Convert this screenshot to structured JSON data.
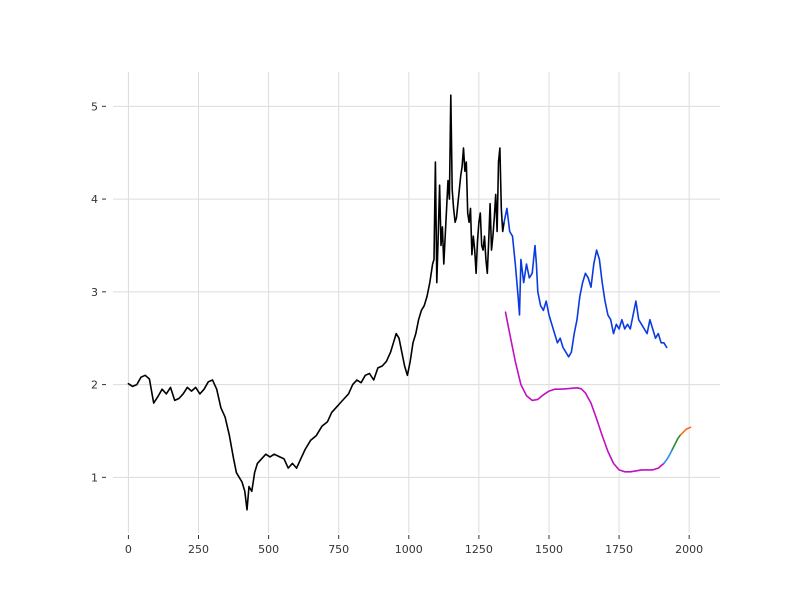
{
  "chart_data": {
    "type": "line",
    "title": "",
    "xlabel": "",
    "ylabel": "",
    "xlim": [
      -55,
      2110
    ],
    "ylim": [
      0.4,
      5.37
    ],
    "grid": true,
    "legend": "none",
    "x_ticks": [
      {
        "value": 0,
        "label": "0"
      },
      {
        "value": 250,
        "label": "250"
      },
      {
        "value": 500,
        "label": "500"
      },
      {
        "value": 750,
        "label": "750"
      },
      {
        "value": 1000,
        "label": "1000"
      },
      {
        "value": 1250,
        "label": "1250"
      },
      {
        "value": 1500,
        "label": "1500"
      },
      {
        "value": 1750,
        "label": "1750"
      },
      {
        "value": 2000,
        "label": "2000"
      }
    ],
    "y_ticks": [
      {
        "value": 1,
        "label": "1"
      },
      {
        "value": 2,
        "label": "2"
      },
      {
        "value": 3,
        "label": "3"
      },
      {
        "value": 4,
        "label": "4"
      },
      {
        "value": 5,
        "label": "5"
      }
    ],
    "series": [
      {
        "color": "#000000",
        "points": [
          [
            0,
            2.01
          ],
          [
            15,
            1.98
          ],
          [
            30,
            2.0
          ],
          [
            45,
            2.08
          ],
          [
            60,
            2.1
          ],
          [
            75,
            2.06
          ],
          [
            90,
            1.8
          ],
          [
            105,
            1.87
          ],
          [
            120,
            1.95
          ],
          [
            135,
            1.9
          ],
          [
            150,
            1.97
          ],
          [
            165,
            1.83
          ],
          [
            180,
            1.85
          ],
          [
            195,
            1.9
          ],
          [
            210,
            1.97
          ],
          [
            225,
            1.93
          ],
          [
            240,
            1.97
          ],
          [
            255,
            1.9
          ],
          [
            270,
            1.95
          ],
          [
            285,
            2.03
          ],
          [
            300,
            2.05
          ],
          [
            315,
            1.95
          ],
          [
            330,
            1.75
          ],
          [
            345,
            1.65
          ],
          [
            360,
            1.45
          ],
          [
            375,
            1.2
          ],
          [
            385,
            1.05
          ],
          [
            395,
            1.0
          ],
          [
            405,
            0.95
          ],
          [
            415,
            0.85
          ],
          [
            423,
            0.65
          ],
          [
            430,
            0.9
          ],
          [
            440,
            0.85
          ],
          [
            450,
            1.05
          ],
          [
            460,
            1.15
          ],
          [
            475,
            1.2
          ],
          [
            490,
            1.25
          ],
          [
            505,
            1.22
          ],
          [
            520,
            1.25
          ],
          [
            540,
            1.22
          ],
          [
            555,
            1.2
          ],
          [
            570,
            1.1
          ],
          [
            585,
            1.15
          ],
          [
            600,
            1.1
          ],
          [
            615,
            1.2
          ],
          [
            630,
            1.3
          ],
          [
            650,
            1.4
          ],
          [
            670,
            1.45
          ],
          [
            690,
            1.55
          ],
          [
            710,
            1.6
          ],
          [
            725,
            1.7
          ],
          [
            740,
            1.75
          ],
          [
            755,
            1.8
          ],
          [
            770,
            1.85
          ],
          [
            785,
            1.9
          ],
          [
            800,
            2.0
          ],
          [
            815,
            2.05
          ],
          [
            830,
            2.02
          ],
          [
            845,
            2.1
          ],
          [
            860,
            2.12
          ],
          [
            875,
            2.05
          ],
          [
            890,
            2.18
          ],
          [
            905,
            2.2
          ],
          [
            920,
            2.25
          ],
          [
            935,
            2.35
          ],
          [
            945,
            2.45
          ],
          [
            955,
            2.55
          ],
          [
            965,
            2.5
          ],
          [
            975,
            2.35
          ],
          [
            985,
            2.2
          ],
          [
            995,
            2.1
          ],
          [
            1005,
            2.25
          ],
          [
            1015,
            2.45
          ],
          [
            1025,
            2.55
          ],
          [
            1035,
            2.7
          ],
          [
            1045,
            2.8
          ],
          [
            1055,
            2.85
          ],
          [
            1065,
            2.95
          ],
          [
            1075,
            3.1
          ],
          [
            1085,
            3.3
          ],
          [
            1090,
            3.35
          ],
          [
            1095,
            4.4
          ],
          [
            1100,
            3.1
          ],
          [
            1105,
            3.6
          ],
          [
            1110,
            4.15
          ],
          [
            1115,
            3.5
          ],
          [
            1120,
            3.7
          ],
          [
            1125,
            3.3
          ],
          [
            1130,
            3.6
          ],
          [
            1135,
            3.9
          ],
          [
            1140,
            4.2
          ],
          [
            1145,
            4.0
          ],
          [
            1150,
            5.12
          ],
          [
            1155,
            4.1
          ],
          [
            1160,
            3.9
          ],
          [
            1165,
            3.75
          ],
          [
            1170,
            3.8
          ],
          [
            1175,
            3.95
          ],
          [
            1180,
            4.1
          ],
          [
            1185,
            4.25
          ],
          [
            1190,
            4.35
          ],
          [
            1195,
            4.55
          ],
          [
            1200,
            4.3
          ],
          [
            1205,
            4.4
          ],
          [
            1210,
            3.85
          ],
          [
            1215,
            3.75
          ],
          [
            1220,
            3.9
          ],
          [
            1225,
            3.4
          ],
          [
            1230,
            3.6
          ],
          [
            1235,
            3.45
          ],
          [
            1240,
            3.2
          ],
          [
            1245,
            3.55
          ],
          [
            1250,
            3.75
          ],
          [
            1255,
            3.85
          ],
          [
            1260,
            3.5
          ],
          [
            1265,
            3.45
          ],
          [
            1270,
            3.6
          ],
          [
            1275,
            3.35
          ],
          [
            1280,
            3.2
          ],
          [
            1285,
            3.55
          ],
          [
            1290,
            3.95
          ],
          [
            1295,
            3.45
          ],
          [
            1300,
            3.6
          ],
          [
            1305,
            3.8
          ],
          [
            1310,
            4.05
          ],
          [
            1315,
            3.65
          ],
          [
            1320,
            4.4
          ],
          [
            1325,
            4.55
          ],
          [
            1330,
            3.9
          ],
          [
            1335,
            3.65
          ],
          [
            1340,
            3.75
          ]
        ]
      },
      {
        "color": "#0a3be0",
        "points": [
          [
            1340,
            3.75
          ],
          [
            1350,
            3.9
          ],
          [
            1360,
            3.65
          ],
          [
            1370,
            3.6
          ],
          [
            1380,
            3.3
          ],
          [
            1390,
            2.95
          ],
          [
            1395,
            2.75
          ],
          [
            1400,
            3.35
          ],
          [
            1410,
            3.1
          ],
          [
            1420,
            3.3
          ],
          [
            1430,
            3.15
          ],
          [
            1440,
            3.2
          ],
          [
            1450,
            3.5
          ],
          [
            1455,
            3.3
          ],
          [
            1460,
            3.0
          ],
          [
            1470,
            2.85
          ],
          [
            1480,
            2.8
          ],
          [
            1490,
            2.9
          ],
          [
            1500,
            2.75
          ],
          [
            1510,
            2.65
          ],
          [
            1520,
            2.55
          ],
          [
            1530,
            2.45
          ],
          [
            1540,
            2.5
          ],
          [
            1550,
            2.4
          ],
          [
            1560,
            2.35
          ],
          [
            1570,
            2.3
          ],
          [
            1580,
            2.35
          ],
          [
            1590,
            2.55
          ],
          [
            1600,
            2.7
          ],
          [
            1610,
            2.95
          ],
          [
            1620,
            3.1
          ],
          [
            1630,
            3.2
          ],
          [
            1640,
            3.15
          ],
          [
            1650,
            3.05
          ],
          [
            1660,
            3.3
          ],
          [
            1670,
            3.45
          ],
          [
            1680,
            3.35
          ],
          [
            1690,
            3.1
          ],
          [
            1700,
            2.9
          ],
          [
            1710,
            2.75
          ],
          [
            1720,
            2.7
          ],
          [
            1730,
            2.55
          ],
          [
            1740,
            2.65
          ],
          [
            1750,
            2.6
          ],
          [
            1760,
            2.7
          ],
          [
            1770,
            2.6
          ],
          [
            1780,
            2.65
          ],
          [
            1790,
            2.6
          ],
          [
            1800,
            2.75
          ],
          [
            1810,
            2.9
          ],
          [
            1820,
            2.7
          ],
          [
            1830,
            2.65
          ],
          [
            1840,
            2.6
          ],
          [
            1850,
            2.55
          ],
          [
            1860,
            2.7
          ],
          [
            1870,
            2.6
          ],
          [
            1880,
            2.5
          ],
          [
            1890,
            2.55
          ],
          [
            1900,
            2.45
          ],
          [
            1910,
            2.45
          ],
          [
            1920,
            2.4
          ]
        ]
      },
      {
        "color": "#c010c0",
        "points": [
          [
            1345,
            2.78
          ],
          [
            1360,
            2.55
          ],
          [
            1380,
            2.25
          ],
          [
            1400,
            2.0
          ],
          [
            1420,
            1.88
          ],
          [
            1440,
            1.83
          ],
          [
            1460,
            1.84
          ],
          [
            1480,
            1.89
          ],
          [
            1500,
            1.93
          ],
          [
            1520,
            1.95
          ],
          [
            1540,
            1.95
          ],
          [
            1560,
            1.955
          ],
          [
            1580,
            1.96
          ],
          [
            1600,
            1.965
          ],
          [
            1615,
            1.955
          ],
          [
            1630,
            1.91
          ],
          [
            1650,
            1.8
          ],
          [
            1670,
            1.63
          ],
          [
            1690,
            1.45
          ],
          [
            1710,
            1.28
          ],
          [
            1730,
            1.15
          ],
          [
            1750,
            1.08
          ],
          [
            1770,
            1.06
          ],
          [
            1790,
            1.06
          ],
          [
            1810,
            1.07
          ],
          [
            1830,
            1.08
          ],
          [
            1850,
            1.08
          ],
          [
            1870,
            1.08
          ],
          [
            1890,
            1.1
          ],
          [
            1910,
            1.15
          ]
        ]
      },
      {
        "color": "#2f8ee0",
        "points": [
          [
            1910,
            1.15
          ],
          [
            1920,
            1.19
          ],
          [
            1930,
            1.24
          ],
          [
            1940,
            1.3
          ]
        ]
      },
      {
        "color": "#2c8a2c",
        "points": [
          [
            1940,
            1.3
          ],
          [
            1950,
            1.36
          ],
          [
            1960,
            1.42
          ],
          [
            1970,
            1.46
          ]
        ]
      },
      {
        "color": "#ff6a1a",
        "points": [
          [
            1970,
            1.46
          ],
          [
            1980,
            1.49
          ],
          [
            1990,
            1.52
          ],
          [
            2005,
            1.54
          ]
        ]
      }
    ]
  }
}
